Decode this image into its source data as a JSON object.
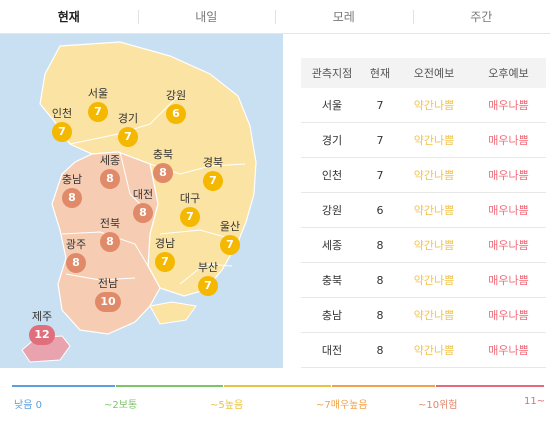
{
  "tabs": [
    {
      "label": "현재",
      "active": true
    },
    {
      "label": "내일",
      "active": false
    },
    {
      "label": "모레",
      "active": false
    },
    {
      "label": "주간",
      "active": false
    }
  ],
  "colors": {
    "sea": "#c9dff2",
    "level_low": "#f5b800",
    "level_high": "#e08a6a",
    "level_very_high": "#e06f7e",
    "forecast_moderate": "#f2c34a",
    "forecast_bad": "#ef6a78"
  },
  "map": {
    "regions": [
      {
        "name": "서울",
        "value": "7",
        "level": "moderate"
      },
      {
        "name": "인천",
        "value": "7",
        "level": "moderate"
      },
      {
        "name": "경기",
        "value": "7",
        "level": "moderate"
      },
      {
        "name": "강원",
        "value": "6",
        "level": "moderate"
      },
      {
        "name": "세종",
        "value": "8",
        "level": "bad"
      },
      {
        "name": "충북",
        "value": "8",
        "level": "bad"
      },
      {
        "name": "경북",
        "value": "7",
        "level": "moderate"
      },
      {
        "name": "충남",
        "value": "8",
        "level": "bad"
      },
      {
        "name": "대전",
        "value": "8",
        "level": "bad"
      },
      {
        "name": "대구",
        "value": "7",
        "level": "moderate"
      },
      {
        "name": "울산",
        "value": "7",
        "level": "moderate"
      },
      {
        "name": "전북",
        "value": "8",
        "level": "bad"
      },
      {
        "name": "광주",
        "value": "8",
        "level": "bad"
      },
      {
        "name": "경남",
        "value": "7",
        "level": "moderate"
      },
      {
        "name": "부산",
        "value": "7",
        "level": "moderate"
      },
      {
        "name": "전남",
        "value": "10",
        "level": "bad"
      },
      {
        "name": "제주",
        "value": "12",
        "level": "very_bad"
      }
    ]
  },
  "table": {
    "headers": [
      "관측지점",
      "현재",
      "오전예보",
      "오후예보"
    ],
    "rows": [
      {
        "site": "서울",
        "now": "7",
        "am": "약간나쁨",
        "pm": "매우나쁨"
      },
      {
        "site": "경기",
        "now": "7",
        "am": "약간나쁨",
        "pm": "매우나쁨"
      },
      {
        "site": "인천",
        "now": "7",
        "am": "약간나쁨",
        "pm": "매우나쁨"
      },
      {
        "site": "강원",
        "now": "6",
        "am": "약간나쁨",
        "pm": "매우나쁨"
      },
      {
        "site": "세종",
        "now": "8",
        "am": "약간나쁨",
        "pm": "매우나쁨"
      },
      {
        "site": "충북",
        "now": "8",
        "am": "약간나쁨",
        "pm": "매우나쁨"
      },
      {
        "site": "충남",
        "now": "8",
        "am": "약간나쁨",
        "pm": "매우나쁨"
      },
      {
        "site": "대전",
        "now": "8",
        "am": "약간나쁨",
        "pm": "매우나쁨"
      }
    ]
  },
  "legend": [
    {
      "label": "낮음 0",
      "color": "#5aa0e0"
    },
    {
      "label": "~2보통",
      "color": "#7cc46a"
    },
    {
      "label": "~5높음",
      "color": "#e8c340"
    },
    {
      "label": "~7매우높음",
      "color": "#f0a24a"
    },
    {
      "label": "~10위험",
      "color": "#e4846a"
    },
    {
      "label": "11~",
      "color": "#e26a7a"
    }
  ]
}
